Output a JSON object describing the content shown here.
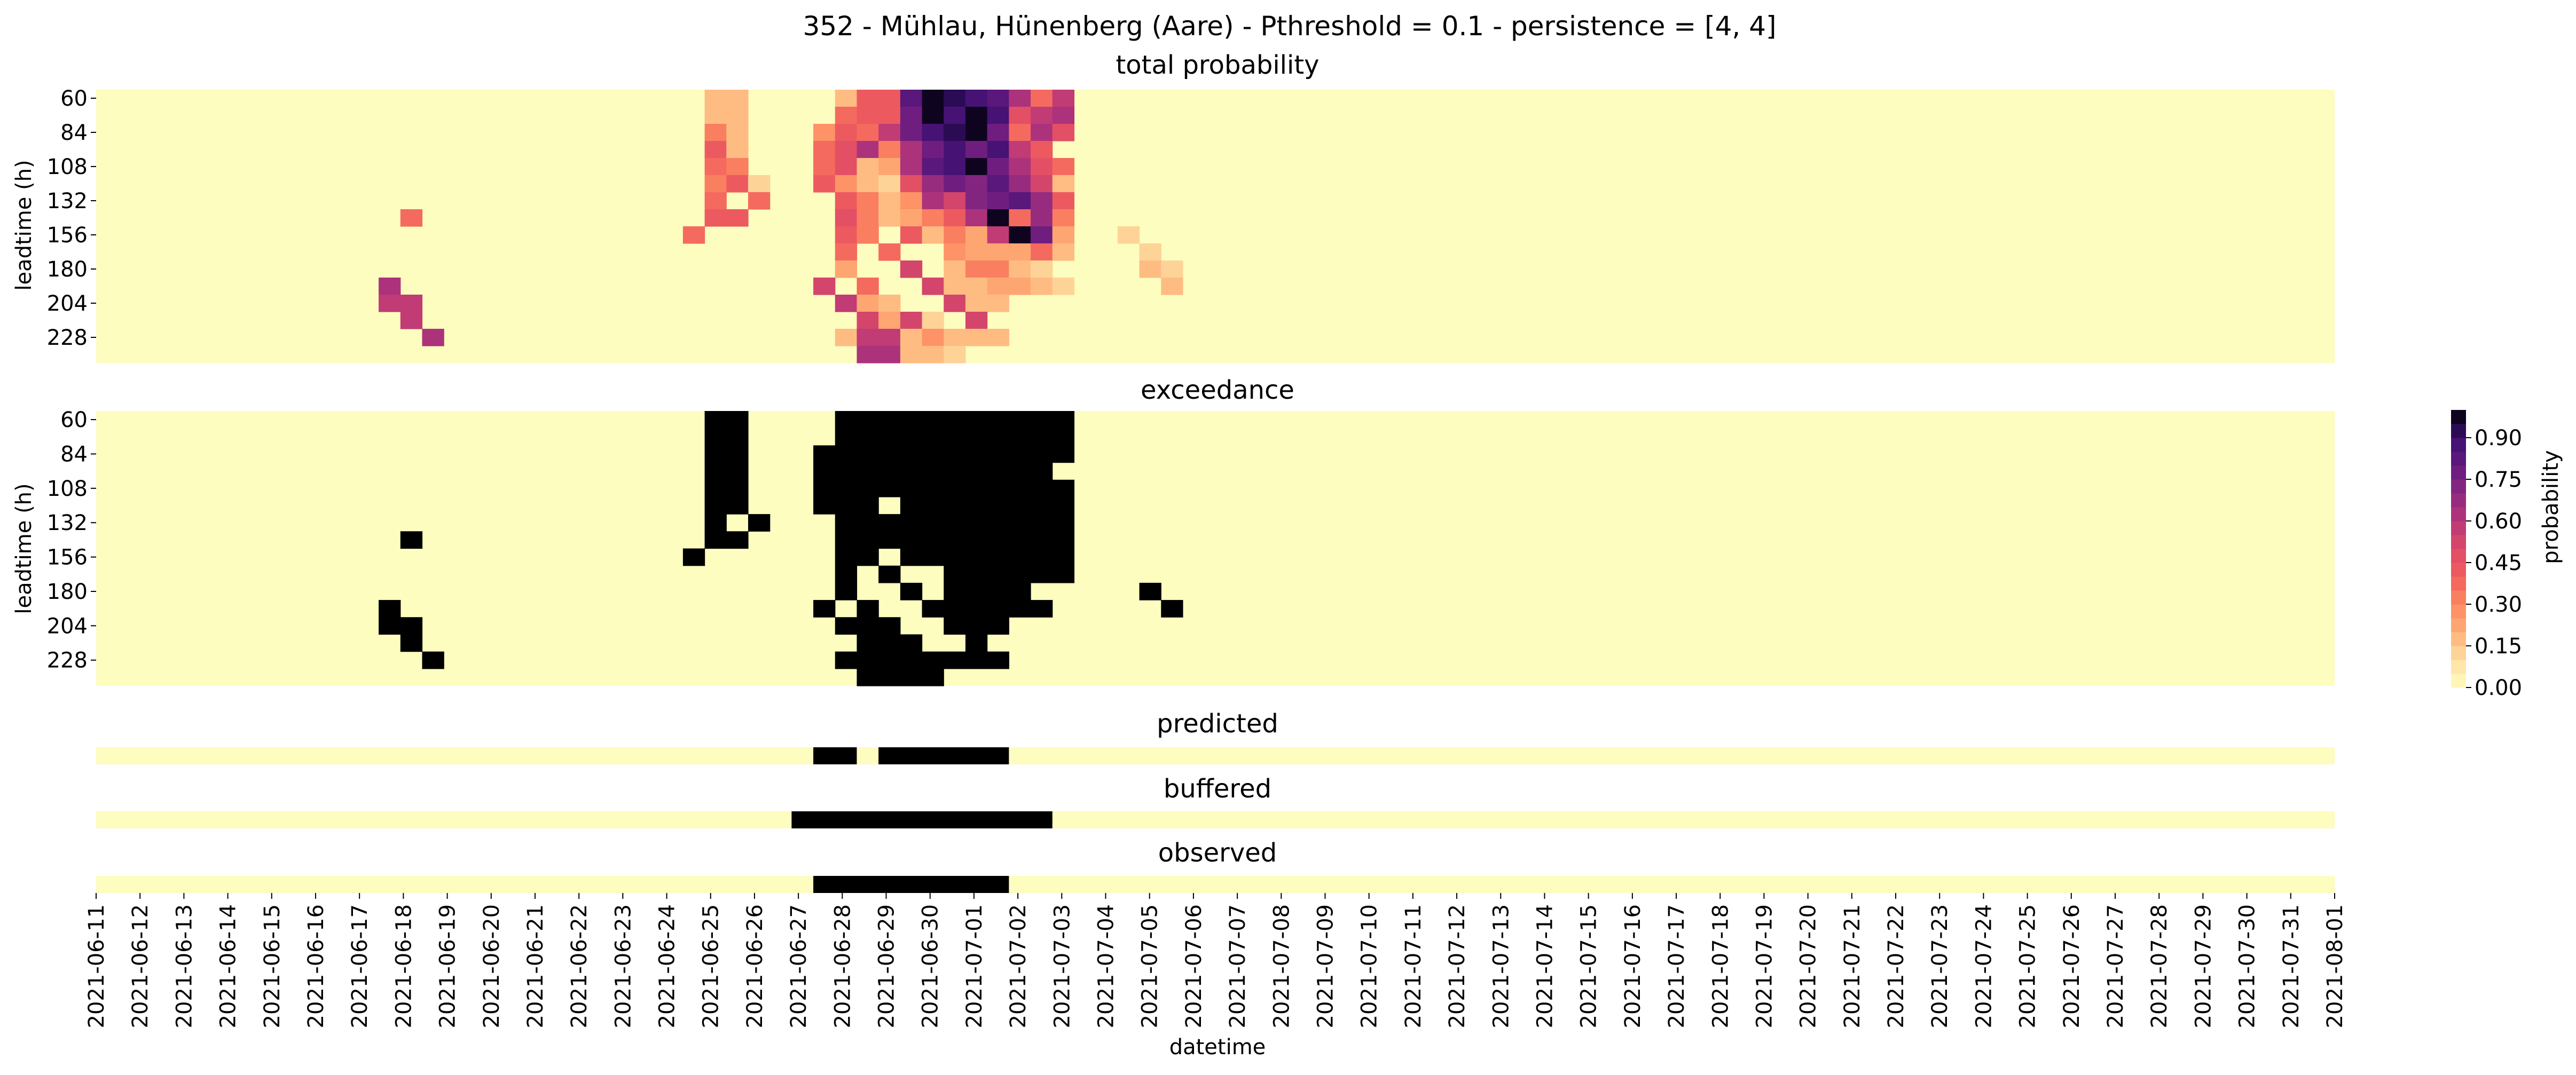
{
  "chart_data": {
    "type": "heatmap",
    "title": "352 - Mühlau, Hünenberg (Aare) - Pthreshold = 0.1 - persistence = [4, 4]",
    "xlabel": "datetime",
    "x_tick_labels": [
      "2021-06-11",
      "2021-06-12",
      "2021-06-13",
      "2021-06-14",
      "2021-06-15",
      "2021-06-16",
      "2021-06-17",
      "2021-06-18",
      "2021-06-19",
      "2021-06-20",
      "2021-06-21",
      "2021-06-22",
      "2021-06-23",
      "2021-06-24",
      "2021-06-25",
      "2021-06-26",
      "2021-06-27",
      "2021-06-28",
      "2021-06-29",
      "2021-06-30",
      "2021-07-01",
      "2021-07-02",
      "2021-07-03",
      "2021-07-04",
      "2021-07-05",
      "2021-07-06",
      "2021-07-07",
      "2021-07-08",
      "2021-07-09",
      "2021-07-10",
      "2021-07-11",
      "2021-07-12",
      "2021-07-13",
      "2021-07-14",
      "2021-07-15",
      "2021-07-16",
      "2021-07-17",
      "2021-07-18",
      "2021-07-19",
      "2021-07-20",
      "2021-07-21",
      "2021-07-22",
      "2021-07-23",
      "2021-07-24",
      "2021-07-25",
      "2021-07-26",
      "2021-07-27",
      "2021-07-28",
      "2021-07-29",
      "2021-07-30",
      "2021-07-31",
      "2021-08-01"
    ],
    "column_step_hours": 12,
    "leadtime_h": [
      60,
      72,
      84,
      96,
      108,
      120,
      132,
      144,
      156,
      168,
      180,
      192,
      204,
      216,
      228,
      240
    ],
    "leadtime_tick_labels": [
      "60",
      "84",
      "108",
      "132",
      "156",
      "180",
      "204",
      "228"
    ],
    "ylabel": "leadtime (h)",
    "panels": {
      "total_probability": {
        "title": "total probability",
        "cells": [
          [
            28,
            0,
            0.15
          ],
          [
            29,
            0,
            0.15
          ],
          [
            28,
            1,
            0.15
          ],
          [
            29,
            1,
            0.15
          ],
          [
            28,
            2,
            0.3
          ],
          [
            29,
            2,
            0.15
          ],
          [
            28,
            3,
            0.4
          ],
          [
            29,
            3,
            0.15
          ],
          [
            28,
            4,
            0.35
          ],
          [
            29,
            4,
            0.3
          ],
          [
            28,
            5,
            0.3
          ],
          [
            29,
            5,
            0.4
          ],
          [
            30,
            5,
            0.1
          ],
          [
            28,
            6,
            0.35
          ],
          [
            30,
            6,
            0.35
          ],
          [
            28,
            7,
            0.4
          ],
          [
            29,
            7,
            0.4
          ],
          [
            27,
            8,
            0.35
          ],
          [
            34,
            0,
            0.15
          ],
          [
            35,
            0,
            0.4
          ],
          [
            36,
            0,
            0.4
          ],
          [
            37,
            0,
            0.8
          ],
          [
            38,
            0,
            0.95
          ],
          [
            39,
            0,
            0.9
          ],
          [
            40,
            0,
            0.85
          ],
          [
            41,
            0,
            0.8
          ],
          [
            42,
            0,
            0.6
          ],
          [
            43,
            0,
            0.35
          ],
          [
            44,
            0,
            0.55
          ],
          [
            34,
            1,
            0.35
          ],
          [
            35,
            1,
            0.4
          ],
          [
            36,
            1,
            0.4
          ],
          [
            37,
            1,
            0.75
          ],
          [
            38,
            1,
            0.95
          ],
          [
            39,
            1,
            0.85
          ],
          [
            40,
            1,
            0.95
          ],
          [
            41,
            1,
            0.85
          ],
          [
            42,
            1,
            0.45
          ],
          [
            43,
            1,
            0.55
          ],
          [
            44,
            1,
            0.6
          ],
          [
            33,
            2,
            0.25
          ],
          [
            34,
            2,
            0.4
          ],
          [
            35,
            2,
            0.35
          ],
          [
            36,
            2,
            0.55
          ],
          [
            37,
            2,
            0.75
          ],
          [
            38,
            2,
            0.85
          ],
          [
            39,
            2,
            0.9
          ],
          [
            40,
            2,
            0.95
          ],
          [
            41,
            2,
            0.75
          ],
          [
            42,
            2,
            0.35
          ],
          [
            43,
            2,
            0.6
          ],
          [
            44,
            2,
            0.45
          ],
          [
            33,
            3,
            0.35
          ],
          [
            34,
            3,
            0.45
          ],
          [
            35,
            3,
            0.6
          ],
          [
            36,
            3,
            0.3
          ],
          [
            37,
            3,
            0.6
          ],
          [
            38,
            3,
            0.75
          ],
          [
            39,
            3,
            0.85
          ],
          [
            40,
            3,
            0.75
          ],
          [
            41,
            3,
            0.85
          ],
          [
            42,
            3,
            0.55
          ],
          [
            43,
            3,
            0.4
          ],
          [
            33,
            4,
            0.35
          ],
          [
            34,
            4,
            0.45
          ],
          [
            35,
            4,
            0.15
          ],
          [
            36,
            4,
            0.2
          ],
          [
            37,
            4,
            0.6
          ],
          [
            38,
            4,
            0.8
          ],
          [
            39,
            4,
            0.85
          ],
          [
            40,
            4,
            0.95
          ],
          [
            41,
            4,
            0.75
          ],
          [
            42,
            4,
            0.6
          ],
          [
            43,
            4,
            0.45
          ],
          [
            44,
            4,
            0.35
          ],
          [
            33,
            5,
            0.4
          ],
          [
            34,
            5,
            0.25
          ],
          [
            35,
            5,
            0.15
          ],
          [
            36,
            5,
            0.1
          ],
          [
            37,
            5,
            0.45
          ],
          [
            38,
            5,
            0.65
          ],
          [
            39,
            5,
            0.75
          ],
          [
            40,
            5,
            0.7
          ],
          [
            41,
            5,
            0.8
          ],
          [
            42,
            5,
            0.65
          ],
          [
            43,
            5,
            0.5
          ],
          [
            44,
            5,
            0.15
          ],
          [
            34,
            6,
            0.4
          ],
          [
            35,
            6,
            0.3
          ],
          [
            36,
            6,
            0.15
          ],
          [
            37,
            6,
            0.25
          ],
          [
            38,
            6,
            0.6
          ],
          [
            39,
            6,
            0.5
          ],
          [
            40,
            6,
            0.7
          ],
          [
            41,
            6,
            0.75
          ],
          [
            42,
            6,
            0.8
          ],
          [
            43,
            6,
            0.65
          ],
          [
            44,
            6,
            0.4
          ],
          [
            34,
            7,
            0.45
          ],
          [
            35,
            7,
            0.3
          ],
          [
            36,
            7,
            0.15
          ],
          [
            37,
            7,
            0.2
          ],
          [
            38,
            7,
            0.3
          ],
          [
            39,
            7,
            0.4
          ],
          [
            40,
            7,
            0.6
          ],
          [
            41,
            7,
            0.95
          ],
          [
            42,
            7,
            0.35
          ],
          [
            43,
            7,
            0.65
          ],
          [
            44,
            7,
            0.3
          ],
          [
            34,
            8,
            0.4
          ],
          [
            35,
            8,
            0.3
          ],
          [
            37,
            8,
            0.4
          ],
          [
            38,
            8,
            0.15
          ],
          [
            39,
            8,
            0.3
          ],
          [
            40,
            8,
            0.2
          ],
          [
            41,
            8,
            0.55
          ],
          [
            42,
            8,
            0.95
          ],
          [
            43,
            8,
            0.75
          ],
          [
            44,
            8,
            0.2
          ],
          [
            34,
            9,
            0.35
          ],
          [
            36,
            9,
            0.35
          ],
          [
            39,
            9,
            0.25
          ],
          [
            40,
            9,
            0.2
          ],
          [
            41,
            9,
            0.2
          ],
          [
            42,
            9,
            0.2
          ],
          [
            43,
            9,
            0.35
          ],
          [
            44,
            9,
            0.15
          ],
          [
            34,
            10,
            0.2
          ],
          [
            37,
            10,
            0.5
          ],
          [
            39,
            10,
            0.15
          ],
          [
            40,
            10,
            0.3
          ],
          [
            41,
            10,
            0.3
          ],
          [
            42,
            10,
            0.15
          ],
          [
            43,
            10,
            0.1
          ],
          [
            33,
            11,
            0.5
          ],
          [
            35,
            11,
            0.35
          ],
          [
            38,
            11,
            0.5
          ],
          [
            39,
            11,
            0.15
          ],
          [
            40,
            11,
            0.15
          ],
          [
            41,
            11,
            0.2
          ],
          [
            42,
            11,
            0.2
          ],
          [
            43,
            11,
            0.15
          ],
          [
            44,
            11,
            0.1
          ],
          [
            34,
            12,
            0.55
          ],
          [
            35,
            12,
            0.2
          ],
          [
            36,
            12,
            0.15
          ],
          [
            39,
            12,
            0.5
          ],
          [
            40,
            12,
            0.15
          ],
          [
            41,
            12,
            0.15
          ],
          [
            35,
            13,
            0.5
          ],
          [
            36,
            13,
            0.2
          ],
          [
            37,
            13,
            0.5
          ],
          [
            38,
            13,
            0.1
          ],
          [
            40,
            13,
            0.5
          ],
          [
            34,
            14,
            0.15
          ],
          [
            35,
            14,
            0.55
          ],
          [
            36,
            14,
            0.55
          ],
          [
            37,
            14,
            0.15
          ],
          [
            38,
            14,
            0.25
          ],
          [
            39,
            14,
            0.15
          ],
          [
            40,
            14,
            0.15
          ],
          [
            41,
            14,
            0.15
          ],
          [
            35,
            15,
            0.6
          ],
          [
            36,
            15,
            0.6
          ],
          [
            37,
            15,
            0.15
          ],
          [
            38,
            15,
            0.15
          ],
          [
            39,
            15,
            0.1
          ],
          [
            14,
            7,
            0.35
          ],
          [
            13,
            11,
            0.6
          ],
          [
            13,
            12,
            0.55
          ],
          [
            14,
            12,
            0.55
          ],
          [
            14,
            13,
            0.55
          ],
          [
            15,
            14,
            0.6
          ],
          [
            47,
            8,
            0.1
          ],
          [
            48,
            9,
            0.1
          ],
          [
            48,
            10,
            0.15
          ],
          [
            49,
            10,
            0.1
          ],
          [
            49,
            11,
            0.15
          ]
        ]
      },
      "exceedance": {
        "title": "exceedance"
      },
      "predicted": {
        "title": "predicted",
        "on_ranges": [
          [
            33,
            34
          ],
          [
            36,
            41
          ]
        ]
      },
      "buffered": {
        "title": "buffered",
        "on_ranges": [
          [
            32,
            43
          ]
        ]
      },
      "observed": {
        "title": "observed",
        "on_ranges": [
          [
            33,
            41
          ]
        ]
      }
    },
    "p_threshold": 0.1,
    "colorbar": {
      "label": "probability",
      "colormap": "magma_r",
      "ticks": [
        "0.00",
        "0.15",
        "0.30",
        "0.45",
        "0.60",
        "0.75",
        "0.90"
      ],
      "range": [
        0,
        1
      ],
      "levels": 20
    },
    "grid": false,
    "colors": {
      "background_cell": "#fcfdbf",
      "exceed_cell": "#000000"
    }
  }
}
